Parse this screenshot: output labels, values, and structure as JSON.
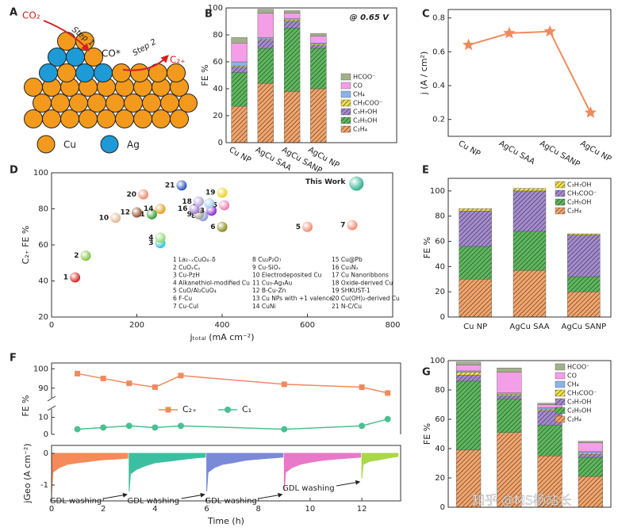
{
  "schematic": {
    "panel": "A",
    "reactant": "CO₂",
    "step1": "Step 1",
    "intermediate": "CO*",
    "step2": "Step 2",
    "product": "C₂₊",
    "legend": [
      "Cu",
      "Ag"
    ],
    "colors": [
      "#f39a1c",
      "#1e9ad6"
    ]
  },
  "watermark": "知乎 @MS杨站长",
  "chart_data": [
    {
      "type": "bar",
      "stacked": true,
      "panel": "B",
      "annotation": "@ 0.65 V",
      "y_label": "FE %",
      "legend": "lower right",
      "categories": [
        "Cu NP",
        "AgCu SAA",
        "AgCu SANP",
        "AgCu NP"
      ],
      "ylim": [
        0,
        100
      ],
      "yticks": [
        0,
        20,
        40,
        60,
        80,
        100
      ],
      "series": [
        {
          "name": "C₂H₄",
          "color": "#f4a46a",
          "hatch": true,
          "values": [
            27,
            44,
            38,
            40
          ]
        },
        {
          "name": "C₂H₅OH",
          "color": "#5cb85c",
          "hatch": true,
          "values": [
            25,
            26,
            47,
            30
          ]
        },
        {
          "name": "C₃H₇OH",
          "color": "#a48ad0",
          "hatch": true,
          "values": [
            4,
            6,
            5,
            2
          ]
        },
        {
          "name": "CH₃COO⁻",
          "color": "#f0e04a",
          "hatch": true,
          "values": [
            1,
            1,
            1,
            1
          ]
        },
        {
          "name": "CH₄",
          "color": "#8ab4e8",
          "hatch": false,
          "values": [
            3,
            1,
            1,
            1
          ]
        },
        {
          "name": "CO",
          "color": "#f49ee8",
          "hatch": false,
          "values": [
            14,
            18,
            4,
            5
          ]
        },
        {
          "name": "HCOO⁻",
          "color": "#a3b08a",
          "hatch": false,
          "values": [
            4,
            3,
            2,
            2
          ]
        }
      ]
    },
    {
      "type": "line",
      "panel": "C",
      "y_label": "j (A / cm²)",
      "categories": [
        "Cu NP",
        "AgCu SAA",
        "AgCu SANP",
        "AgCu NP"
      ],
      "values": [
        0.64,
        0.71,
        0.72,
        0.24
      ],
      "color": "#f08a5d",
      "ylim": [
        0.1,
        0.85
      ],
      "yticks": [
        0.2,
        0.4,
        0.6,
        0.8
      ]
    },
    {
      "type": "scatter",
      "panel": "D",
      "x_label": "jₜₒₜₐₗ (mA cm⁻²)",
      "y_label": "C₂₊ FE %",
      "xlim": [
        0,
        800
      ],
      "xticks": [
        0,
        200,
        400,
        600,
        800
      ],
      "ylim": [
        20,
        100
      ],
      "yticks": [
        20,
        40,
        60,
        80,
        100
      ],
      "labels": [
        "1",
        "2",
        "3",
        "4",
        "5",
        "6",
        "7",
        "8",
        "9",
        "10",
        "11",
        "12",
        "13",
        "14",
        "15",
        "16",
        "17",
        "18",
        "19",
        "20",
        "21",
        "This Work"
      ],
      "x": [
        55,
        80,
        255,
        255,
        600,
        400,
        705,
        355,
        345,
        150,
        235,
        200,
        375,
        255,
        405,
        335,
        370,
        345,
        400,
        215,
        305,
        715
      ],
      "values": [
        42,
        54,
        61,
        64,
        70,
        70,
        71,
        76,
        77,
        75,
        77,
        78,
        79,
        80,
        82,
        80,
        83,
        84,
        89,
        88,
        93,
        94
      ],
      "colors": [
        "#d62020",
        "#7cc63a",
        "#2cc4d8",
        "#8ed66a",
        "#f08a70",
        "#8a8a10",
        "#f08a70",
        "#8a9ad0",
        "#a0a0a0",
        "#e0b890",
        "#2e9a2e",
        "#8a4a2a",
        "#8a2ad0",
        "#e0a020",
        "#f07ab0",
        "#a07ad0",
        "#a0c8e8",
        "#b0a0d8",
        "#f0d020",
        "#f08a6a",
        "#2050c0",
        "#30b090"
      ],
      "references": [
        "1 La₂₋ₓCuO₄₋δ",
        "2 CuOₓCᵧ",
        "3 Cu-PzH",
        "4 Alkanethiol-modified Cu",
        "5 CuO/Al₂CuO₄",
        "6 F-Cu",
        "7 Cu-CuI",
        "8 Cu₂P₂O₇",
        "9 Cu-SiOₓ",
        "10 Electrodeposited Cu",
        "11 Cu₃-Ag₃Au",
        "12 B-Cu-Zn",
        "13 Cu NPs with +1 valence",
        "14 CuNi",
        "15 Cu@Pb",
        "16 Cu₃Nₓ",
        "17 Cu Nanoribbons",
        "18 Oxide-derived Cu",
        "19 SHKUST-1",
        "20 Cu(OH)₂-derived Cu",
        "21 N-C/Cu"
      ]
    },
    {
      "type": "bar",
      "stacked": true,
      "panel": "E",
      "y_label": "FE %",
      "legend": "upper right",
      "categories": [
        "Cu NP",
        "AgCu SAA",
        "AgCu SANP"
      ],
      "ylim": [
        0,
        110
      ],
      "yticks": [
        0,
        20,
        40,
        60,
        80,
        100
      ],
      "series": [
        {
          "name": "C₂H₄",
          "color": "#f4a46a",
          "hatch": true,
          "values": [
            30,
            37,
            20
          ]
        },
        {
          "name": "C₂H₅OH",
          "color": "#5cb85c",
          "hatch": true,
          "values": [
            26,
            31,
            12
          ]
        },
        {
          "name": "CH₃COO⁻",
          "color": "#a48ad0",
          "hatch": true,
          "values": [
            28,
            32,
            33
          ]
        },
        {
          "name": "C₃H₇OH",
          "color": "#f0e04a",
          "hatch": true,
          "values": [
            2,
            2,
            1
          ]
        }
      ]
    },
    {
      "type": "line",
      "panel": "F",
      "y_label": "FE %",
      "ylim": [
        0,
        15
      ],
      "yticks": [
        0,
        10
      ],
      "ylim_upper": [
        85,
        103
      ],
      "yticks_upper": [
        90,
        100
      ],
      "series": [
        {
          "name": "C₂₊",
          "color": "#f08a5d",
          "marker": "square",
          "x": [
            1,
            2,
            3,
            4,
            5,
            9,
            12,
            13
          ],
          "values": [
            97.5,
            95,
            92.5,
            90.5,
            96.5,
            92,
            90.5,
            87.5
          ]
        },
        {
          "name": "C₁",
          "color": "#4cbf90",
          "marker": "circle",
          "x": [
            1,
            2,
            3,
            4,
            5,
            9,
            12,
            13
          ],
          "values": [
            3,
            4,
            5,
            4,
            5,
            3,
            5,
            9
          ]
        }
      ]
    },
    {
      "type": "area",
      "y_label": "jGeo (A cm⁻²)",
      "x_label": "Time (h)",
      "xlim": [
        0,
        13.5
      ],
      "xticks": [
        0,
        2,
        4,
        6,
        8,
        10,
        12
      ],
      "ylim": [
        -1.5,
        0.25
      ],
      "yticks": [
        -1,
        0
      ],
      "annotations": [
        "GDL washing",
        "GDL washing",
        "GDL washing",
        "GDL washing"
      ],
      "series": [
        {
          "color": "#f58a5a",
          "x": [
            0,
            0.05,
            0.3,
            0.6,
            1,
            1.5,
            2,
            2.5,
            2.95
          ],
          "values": [
            -1.3,
            -0.6,
            -0.45,
            -0.35,
            -0.3,
            -0.25,
            -0.2,
            -0.18,
            -0.15
          ]
        },
        {
          "color": "#3cbfa0",
          "x": [
            3,
            3.05,
            3.3,
            3.6,
            4,
            4.5,
            5,
            5.5,
            5.95
          ],
          "values": [
            -1.2,
            -0.65,
            -0.5,
            -0.4,
            -0.3,
            -0.25,
            -0.2,
            -0.15,
            -0.12
          ]
        },
        {
          "color": "#7a8ad8",
          "x": [
            6,
            6.05,
            6.3,
            6.6,
            7,
            7.5,
            8,
            8.5,
            8.95
          ],
          "values": [
            -1.2,
            -0.6,
            -0.45,
            -0.35,
            -0.3,
            -0.22,
            -0.18,
            -0.15,
            -0.12
          ]
        },
        {
          "color": "#e878c8",
          "x": [
            9,
            9.05,
            9.3,
            9.6,
            10,
            10.5,
            11,
            11.5,
            11.95
          ],
          "values": [
            -1.2,
            -0.6,
            -0.45,
            -0.35,
            -0.28,
            -0.22,
            -0.18,
            -0.15,
            -0.12
          ]
        },
        {
          "color": "#a8d848",
          "x": [
            12,
            12.05,
            12.3,
            12.7,
            13,
            13.4
          ],
          "values": [
            -0.8,
            -0.35,
            -0.25,
            -0.2,
            -0.15,
            -0.1
          ]
        }
      ]
    },
    {
      "type": "bar",
      "stacked": true,
      "panel": "G",
      "y_label": "FE %",
      "legend": "upper right",
      "categories": [
        null,
        null,
        null,
        null
      ],
      "ylim": [
        0,
        100
      ],
      "yticks": [
        0,
        20,
        40,
        60,
        80,
        100
      ],
      "series": [
        {
          "name": "C₂H₄",
          "color": "#f4a46a",
          "hatch": true,
          "values": [
            39,
            51,
            35,
            21
          ]
        },
        {
          "name": "C₂H₅OH",
          "color": "#5cb85c",
          "hatch": true,
          "values": [
            47,
            23,
            21,
            13
          ]
        },
        {
          "name": "C₃H₇OH",
          "color": "#a48ad0",
          "hatch": true,
          "values": [
            4,
            2,
            10,
            2
          ]
        },
        {
          "name": "CH₃COO⁻",
          "color": "#f0e04a",
          "hatch": true,
          "values": [
            2,
            1,
            1,
            1
          ]
        },
        {
          "name": "CH₄",
          "color": "#8ab4e8",
          "hatch": false,
          "values": [
            1,
            1,
            1,
            1
          ]
        },
        {
          "name": "CO",
          "color": "#f49ee8",
          "hatch": false,
          "values": [
            4,
            14,
            2,
            6
          ]
        },
        {
          "name": "HCOO⁻",
          "color": "#a3b08a",
          "hatch": false,
          "values": [
            2,
            3,
            1,
            1
          ]
        }
      ]
    }
  ]
}
